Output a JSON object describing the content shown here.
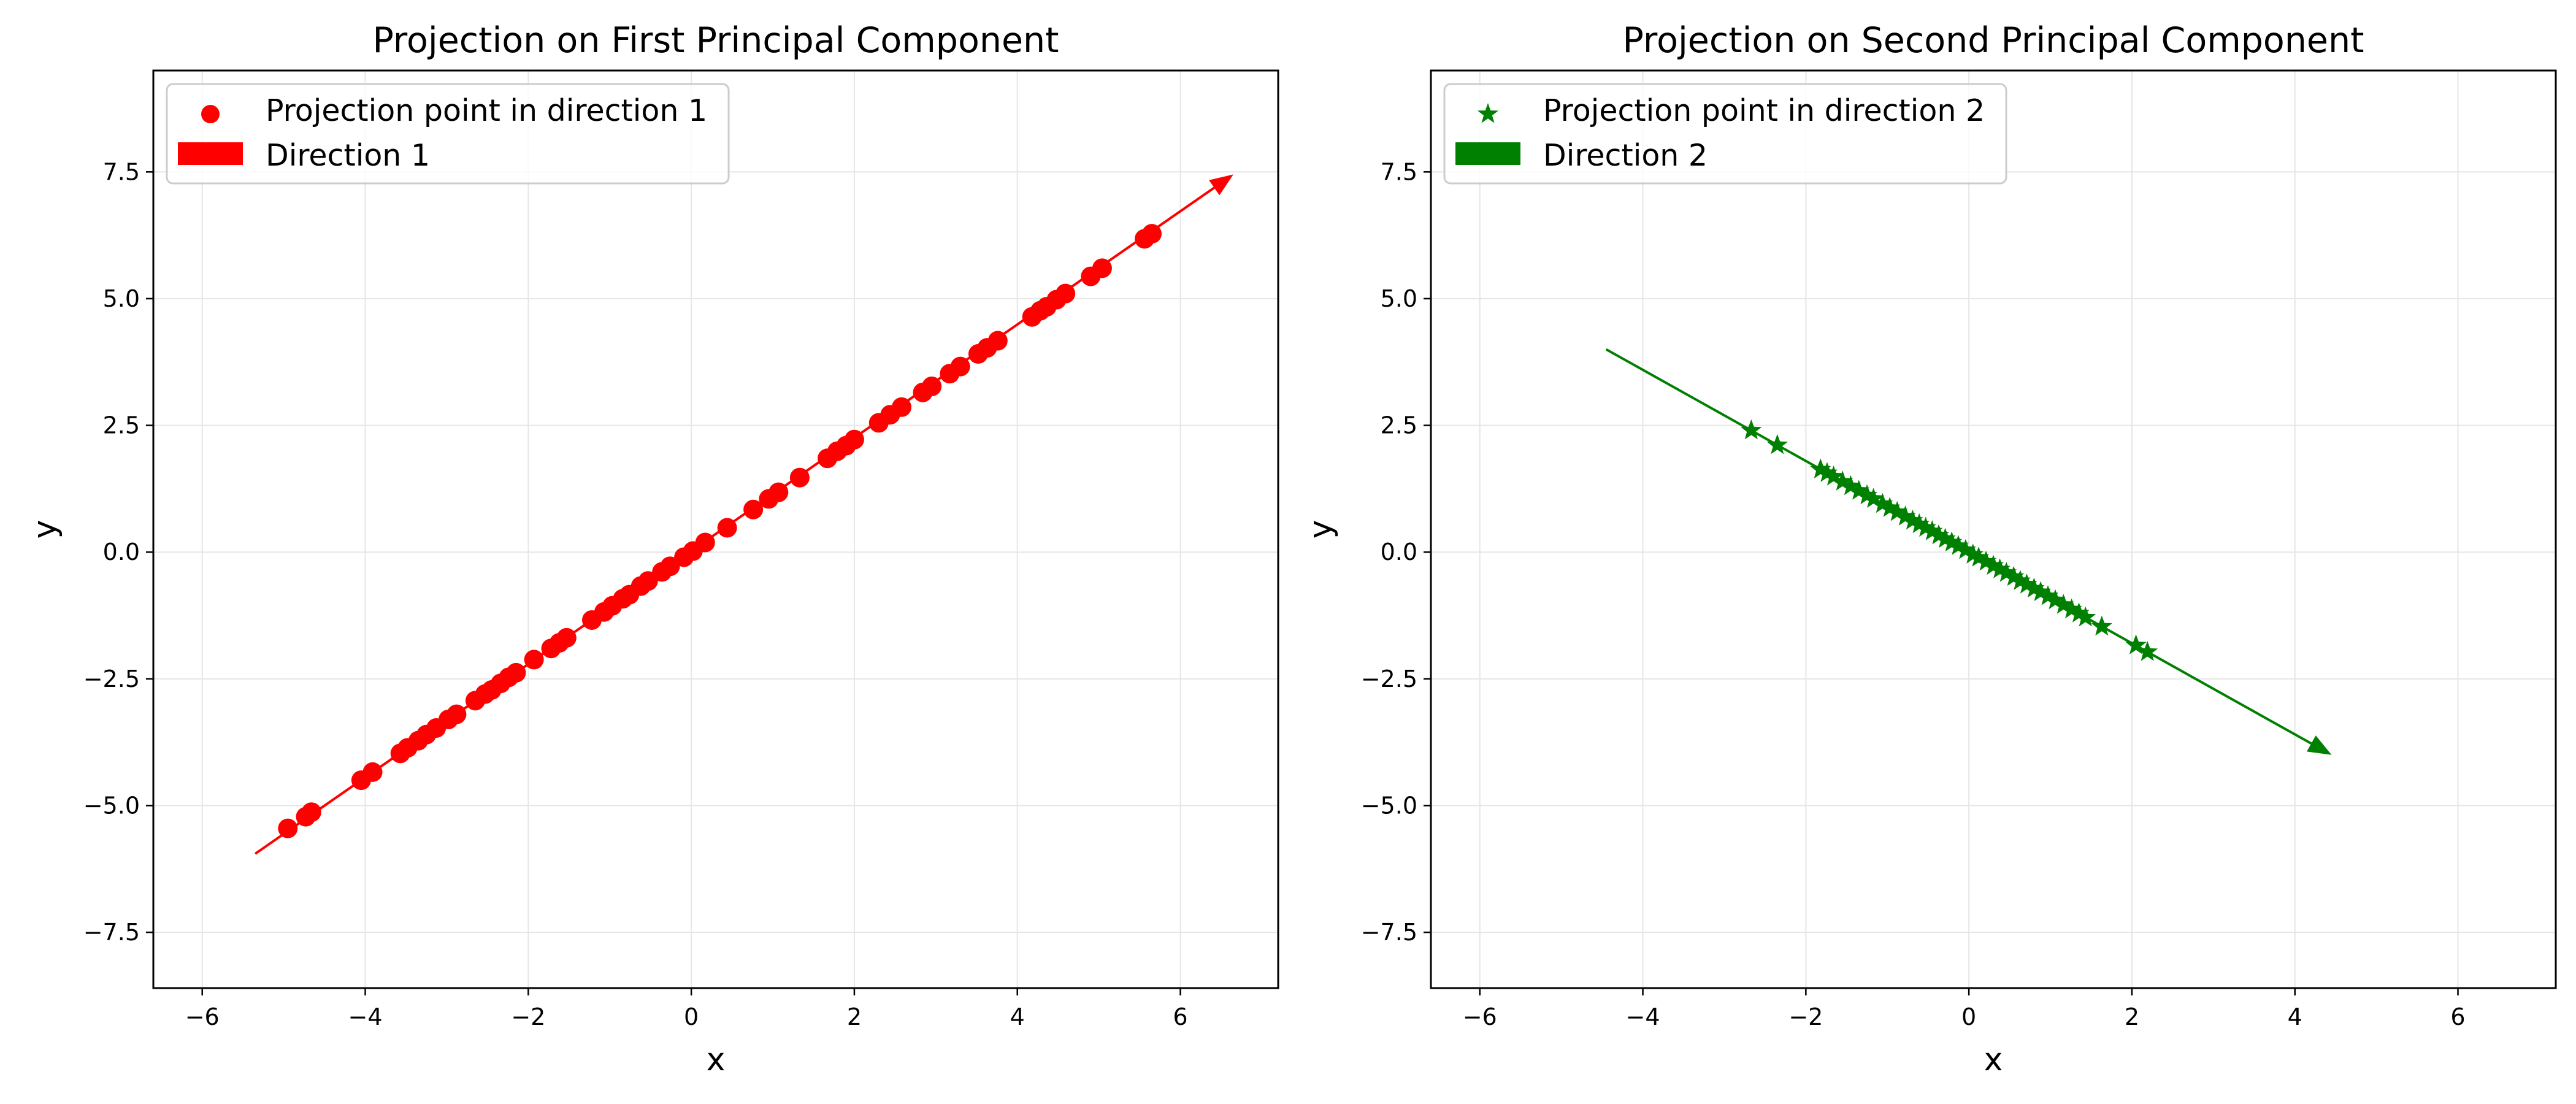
{
  "colors": {
    "red": "#ff0000",
    "green": "#008000",
    "grid": "#e6e6e6"
  },
  "chart_data": [
    {
      "type": "scatter",
      "title": "Projection on First Principal Component",
      "xlabel": "x",
      "ylabel": "y",
      "xlim": [
        -6.6,
        7.2
      ],
      "ylim": [
        -8.6,
        9.5
      ],
      "xticks": [
        -6,
        -4,
        -2,
        0,
        2,
        4,
        6
      ],
      "yticks": [
        -7.5,
        -5.0,
        -2.5,
        0.0,
        2.5,
        5.0,
        7.5
      ],
      "xtick_labels": [
        "−6",
        "−4",
        "−2",
        "0",
        "2",
        "4",
        "6"
      ],
      "ytick_labels": [
        "−7.5",
        "−5.0",
        "−2.5",
        "0.0",
        "2.5",
        "5.0",
        "7.5"
      ],
      "grid": true,
      "legend_position": "upper-left",
      "marker": "circle",
      "color": "#ff0000",
      "arrow": {
        "label": "Direction 1",
        "from": [
          -5.35,
          -5.95
        ],
        "to": [
          6.65,
          7.45
        ]
      },
      "series": [
        {
          "name": "Projection point in direction 1",
          "x": [
            -4.95,
            -4.73,
            -4.66,
            -4.05,
            -3.91,
            -3.57,
            -3.48,
            -3.35,
            -3.25,
            -3.13,
            -2.98,
            -2.88,
            -2.65,
            -2.53,
            -2.45,
            -2.34,
            -2.24,
            -2.15,
            -1.93,
            -1.72,
            -1.62,
            -1.53,
            -1.22,
            -1.07,
            -0.97,
            -0.84,
            -0.76,
            -0.62,
            -0.53,
            -0.36,
            -0.26,
            -0.09,
            0.02,
            0.17,
            0.44,
            0.76,
            0.95,
            1.07,
            1.33,
            1.67,
            1.79,
            1.9,
            2.0,
            2.3,
            2.44,
            2.58,
            2.84,
            2.95,
            3.17,
            3.3,
            3.52,
            3.63,
            3.76,
            4.18,
            4.28,
            4.36,
            4.48,
            4.59,
            4.9,
            5.04,
            5.56,
            5.65
          ],
          "y": [
            -5.45,
            -5.22,
            -5.13,
            -4.5,
            -4.34,
            -3.97,
            -3.86,
            -3.72,
            -3.6,
            -3.47,
            -3.3,
            -3.2,
            -2.93,
            -2.8,
            -2.72,
            -2.59,
            -2.47,
            -2.38,
            -2.12,
            -1.9,
            -1.79,
            -1.69,
            -1.34,
            -1.18,
            -1.06,
            -0.92,
            -0.84,
            -0.67,
            -0.57,
            -0.39,
            -0.28,
            -0.1,
            0.02,
            0.19,
            0.48,
            0.84,
            1.05,
            1.18,
            1.47,
            1.85,
            1.99,
            2.1,
            2.22,
            2.55,
            2.71,
            2.86,
            3.15,
            3.27,
            3.52,
            3.66,
            3.91,
            4.03,
            4.17,
            4.64,
            4.76,
            4.84,
            4.98,
            5.1,
            5.44,
            5.6,
            6.18,
            6.28
          ]
        }
      ]
    },
    {
      "type": "scatter",
      "title": "Projection on Second Principal Component",
      "xlabel": "x",
      "ylabel": "y",
      "xlim": [
        -6.6,
        7.2
      ],
      "ylim": [
        -8.6,
        9.5
      ],
      "xticks": [
        -6,
        -4,
        -2,
        0,
        2,
        4,
        6
      ],
      "yticks": [
        -7.5,
        -5.0,
        -2.5,
        0.0,
        2.5,
        5.0,
        7.5
      ],
      "xtick_labels": [
        "−6",
        "−4",
        "−2",
        "0",
        "2",
        "4",
        "6"
      ],
      "ytick_labels": [
        "−7.5",
        "−5.0",
        "−2.5",
        "0.0",
        "2.5",
        "5.0",
        "7.5"
      ],
      "grid": true,
      "legend_position": "upper-left",
      "marker": "star",
      "color": "#008000",
      "arrow": {
        "label": "Direction 2",
        "from": [
          -4.45,
          4.0
        ],
        "to": [
          4.45,
          -4.0
        ]
      },
      "series": [
        {
          "name": "Projection point in direction 2",
          "x": [
            -2.67,
            -2.35,
            -1.82,
            -1.74,
            -1.66,
            -1.55,
            -1.45,
            -1.35,
            -1.25,
            -1.17,
            -1.06,
            -0.97,
            -0.88,
            -0.78,
            -0.69,
            -0.61,
            -0.53,
            -0.45,
            -0.37,
            -0.29,
            -0.21,
            -0.13,
            -0.04,
            0.05,
            0.12,
            0.21,
            0.3,
            0.38,
            0.46,
            0.55,
            0.63,
            0.71,
            0.8,
            0.88,
            0.97,
            1.06,
            1.16,
            1.26,
            1.35,
            1.43,
            1.63,
            2.05,
            2.19
          ],
          "y": [
            2.4,
            2.11,
            1.63,
            1.56,
            1.49,
            1.39,
            1.3,
            1.21,
            1.12,
            1.05,
            0.95,
            0.87,
            0.79,
            0.7,
            0.62,
            0.55,
            0.48,
            0.41,
            0.33,
            0.26,
            0.19,
            0.12,
            0.04,
            -0.05,
            -0.11,
            -0.19,
            -0.27,
            -0.34,
            -0.41,
            -0.49,
            -0.57,
            -0.64,
            -0.72,
            -0.79,
            -0.87,
            -0.95,
            -1.04,
            -1.13,
            -1.21,
            -1.29,
            -1.47,
            -1.84,
            -1.97
          ]
        }
      ]
    }
  ]
}
